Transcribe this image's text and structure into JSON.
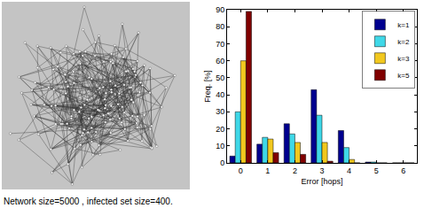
{
  "chart_data": {
    "type": "bar",
    "x_label": "Error [hops]",
    "y_label": "Freq. [%]",
    "x": [
      0,
      1,
      2,
      3,
      4,
      5,
      6
    ],
    "series": [
      {
        "name": "k=1",
        "color": "#00008f",
        "values": [
          4,
          11,
          23,
          43,
          19,
          0.5,
          0
        ]
      },
      {
        "name": "k=2",
        "color": "#3fd8e8",
        "values": [
          30,
          15,
          17,
          28,
          9,
          0.5,
          0
        ]
      },
      {
        "name": "k=3",
        "color": "#f2c81e",
        "values": [
          60,
          14,
          12,
          12,
          2,
          0,
          0
        ]
      },
      {
        "name": "k=5",
        "color": "#800000",
        "values": [
          89,
          6,
          5,
          1,
          0,
          0,
          0
        ]
      }
    ],
    "xlim": [
      -0.5,
      6.5
    ],
    "xticks": [
      0,
      1,
      2,
      3,
      4,
      5,
      6
    ],
    "ylim": [
      0,
      90
    ],
    "yticks": [
      0,
      10,
      20,
      30,
      40,
      50,
      60,
      70,
      80,
      90
    ],
    "grid": false,
    "legend": "upper right",
    "annotations": [
      "Network size=5000 , infected set size=400."
    ]
  }
}
